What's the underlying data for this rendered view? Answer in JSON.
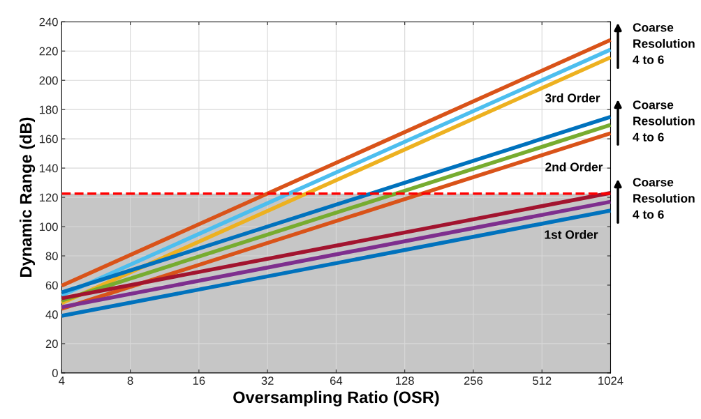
{
  "chart_data": {
    "type": "line",
    "xlabel": "Oversampling Ratio (OSR)",
    "ylabel": "Dynamic Range (dB)",
    "log": "x",
    "xlim": [
      4,
      1024
    ],
    "xticks": [
      4,
      8,
      16,
      32,
      64,
      128,
      256,
      512,
      1024
    ],
    "ylim": [
      0,
      240
    ],
    "yticks": [
      0,
      20,
      40,
      60,
      80,
      100,
      120,
      140,
      160,
      180,
      200,
      220,
      240
    ],
    "grid": true,
    "legend": false,
    "marker": "none",
    "line_style": "solid",
    "x": [
      4,
      1024
    ],
    "series": [
      {
        "color": "#d95319",
        "values": [
          59.6,
          227.6
        ]
      },
      {
        "color": "#4dbeee",
        "values": [
          53,
          221
        ]
      },
      {
        "color": "#edb120",
        "values": [
          47.7,
          215.7
        ]
      },
      {
        "color": "#0072bd",
        "values": [
          55,
          175
        ]
      },
      {
        "color": "#77ac30",
        "values": [
          49.5,
          169.5
        ]
      },
      {
        "color": "#d95319",
        "values": [
          43.8,
          163.8
        ]
      },
      {
        "color": "#a2142f",
        "values": [
          51,
          123
        ]
      },
      {
        "color": "#7e2f8e",
        "values": [
          45,
          117
        ]
      },
      {
        "color": "#0072bd",
        "values": [
          39,
          111
        ]
      }
    ],
    "ref_lines": [
      {
        "axis": "y",
        "value": 122.5,
        "color": "#ff0000",
        "line_style": "dashed"
      }
    ],
    "bands": [
      {
        "axis": "y",
        "from": 0,
        "to": 122.5,
        "color": "#808080"
      }
    ],
    "annotations": [
      "3rd Order",
      "2nd Order",
      "1st Order",
      "Coarse\nResolution\n4 to 6",
      "Coarse\nResolution\n4 to 6",
      "Coarse\nResolution\n4 to 6"
    ]
  }
}
